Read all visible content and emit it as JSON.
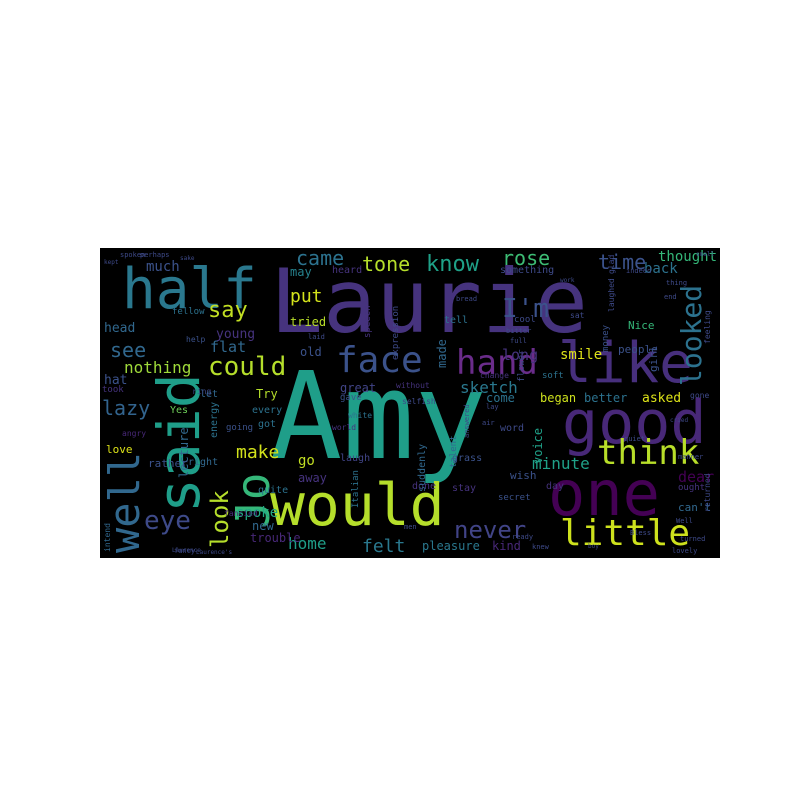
{
  "palette": {
    "background": "#000000",
    "page": "#ffffff",
    "colormap": "viridis"
  },
  "words": [
    {
      "text": "Amy",
      "color": "#1f9e89",
      "orientation": "horizontal"
    },
    {
      "text": "Laurie",
      "color": "#46337e",
      "orientation": "horizontal"
    },
    {
      "text": "said",
      "color": "#1f9e89",
      "orientation": "vertical"
    },
    {
      "text": "one",
      "color": "#440154",
      "orientation": "horizontal"
    },
    {
      "text": "good",
      "color": "#482878",
      "orientation": "horizontal"
    },
    {
      "text": "would",
      "color": "#b5de2b",
      "orientation": "horizontal"
    },
    {
      "text": "like",
      "color": "#472f7d",
      "orientation": "horizontal"
    },
    {
      "text": "half",
      "color": "#2a788e",
      "orientation": "horizontal"
    },
    {
      "text": "face",
      "color": "#3b528b",
      "orientation": "horizontal"
    },
    {
      "text": "hand",
      "color": "#6a2c8a",
      "orientation": "horizontal"
    },
    {
      "text": "little",
      "color": "#cde11d",
      "orientation": "horizontal"
    },
    {
      "text": "well",
      "color": "#31688e",
      "orientation": "vertical"
    },
    {
      "text": "think",
      "color": "#b8de29",
      "orientation": "horizontal"
    },
    {
      "text": "looked",
      "color": "#2c728e",
      "orientation": "vertical"
    },
    {
      "text": "Jo",
      "color": "#35b779",
      "orientation": "vertical"
    },
    {
      "text": "could",
      "color": "#b5de2b",
      "orientation": "horizontal"
    },
    {
      "text": "never",
      "color": "#414487",
      "orientation": "horizontal"
    },
    {
      "text": "eye",
      "color": "#3e4a89",
      "orientation": "horizontal"
    },
    {
      "text": "look",
      "color": "#b5de2b",
      "orientation": "vertical"
    },
    {
      "text": "I'm",
      "color": "#3b528b",
      "orientation": "horizontal"
    },
    {
      "text": "know",
      "color": "#1fa188",
      "orientation": "horizontal"
    },
    {
      "text": "tone",
      "color": "#b5de2b",
      "orientation": "horizontal"
    },
    {
      "text": "came",
      "color": "#2c728e",
      "orientation": "horizontal"
    },
    {
      "text": "rose",
      "color": "#3dbc74",
      "orientation": "horizontal"
    },
    {
      "text": "time",
      "color": "#3b528b",
      "orientation": "horizontal"
    },
    {
      "text": "say",
      "color": "#c2df23",
      "orientation": "horizontal"
    },
    {
      "text": "put",
      "color": "#d2e21b",
      "orientation": "horizontal"
    },
    {
      "text": "see",
      "color": "#31688e",
      "orientation": "horizontal"
    },
    {
      "text": "make",
      "color": "#d2e21b",
      "orientation": "horizontal"
    },
    {
      "text": "felt",
      "color": "#2a788e",
      "orientation": "horizontal"
    },
    {
      "text": "home",
      "color": "#1f9e89",
      "orientation": "horizontal"
    },
    {
      "text": "lazy",
      "color": "#32648e",
      "orientation": "horizontal"
    },
    {
      "text": "nothing",
      "color": "#9fda3a",
      "orientation": "horizontal"
    },
    {
      "text": "sketch",
      "color": "#2a788e",
      "orientation": "horizontal"
    },
    {
      "text": "minute",
      "color": "#1fa188",
      "orientation": "horizontal"
    },
    {
      "text": "dear",
      "color": "#440154",
      "orientation": "horizontal"
    },
    {
      "text": "long",
      "color": "#46337e",
      "orientation": "horizontal"
    },
    {
      "text": "smile",
      "color": "#dde318",
      "orientation": "horizontal"
    },
    {
      "text": "much",
      "color": "#3b528b",
      "orientation": "horizontal"
    },
    {
      "text": "thought",
      "color": "#35b779",
      "orientation": "horizontal"
    },
    {
      "text": "back",
      "color": "#2c728e",
      "orientation": "horizontal"
    },
    {
      "text": "flat",
      "color": "#31688e",
      "orientation": "horizontal"
    },
    {
      "text": "young",
      "color": "#46337e",
      "orientation": "horizontal"
    },
    {
      "text": "tried",
      "color": "#b8de29",
      "orientation": "horizontal"
    },
    {
      "text": "may",
      "color": "#26828e",
      "orientation": "horizontal"
    },
    {
      "text": "old",
      "color": "#3b528b",
      "orientation": "horizontal"
    },
    {
      "text": "lecture",
      "color": "#31688e",
      "orientation": "vertical"
    },
    {
      "text": "hat",
      "color": "#3b528b",
      "orientation": "horizontal"
    },
    {
      "text": "head",
      "color": "#31688e",
      "orientation": "horizontal"
    },
    {
      "text": "spoke",
      "color": "#22a884",
      "orientation": "horizontal"
    },
    {
      "text": "go",
      "color": "#c2df23",
      "orientation": "horizontal"
    },
    {
      "text": "away",
      "color": "#46337e",
      "orientation": "horizontal"
    },
    {
      "text": "new",
      "color": "#31688e",
      "orientation": "horizontal"
    },
    {
      "text": "trouble",
      "color": "#482878",
      "orientation": "horizontal"
    },
    {
      "text": "Try",
      "color": "#b5de2b",
      "orientation": "horizontal"
    },
    {
      "text": "asked",
      "color": "#dde318",
      "orientation": "horizontal"
    },
    {
      "text": "began",
      "color": "#cde11d",
      "orientation": "horizontal"
    },
    {
      "text": "better",
      "color": "#2c728e",
      "orientation": "horizontal"
    },
    {
      "text": "pleasure",
      "color": "#2a788e",
      "orientation": "horizontal"
    },
    {
      "text": "kind",
      "color": "#482878",
      "orientation": "horizontal"
    },
    {
      "text": "wish",
      "color": "#3b528b",
      "orientation": "horizontal"
    },
    {
      "text": "can't",
      "color": "#31688e",
      "orientation": "horizontal"
    },
    {
      "text": "day",
      "color": "#46337e",
      "orientation": "horizontal"
    },
    {
      "text": "come",
      "color": "#2c728e",
      "orientation": "horizontal"
    },
    {
      "text": "great",
      "color": "#414487",
      "orientation": "horizontal"
    },
    {
      "text": "laugh",
      "color": "#414487",
      "orientation": "horizontal"
    },
    {
      "text": "quite",
      "color": "#2c728e",
      "orientation": "horizontal"
    },
    {
      "text": "made",
      "color": "#31688e",
      "orientation": "vertical"
    },
    {
      "text": "voice",
      "color": "#1fa188",
      "orientation": "vertical"
    },
    {
      "text": "people",
      "color": "#3b528b",
      "orientation": "horizontal"
    },
    {
      "text": "Nice",
      "color": "#35b779",
      "orientation": "horizontal"
    },
    {
      "text": "love",
      "color": "#dde318",
      "orientation": "horizontal"
    },
    {
      "text": "rather",
      "color": "#3b528b",
      "orientation": "horizontal"
    },
    {
      "text": "right",
      "color": "#31688e",
      "orientation": "horizontal"
    },
    {
      "text": "done",
      "color": "#46337e",
      "orientation": "horizontal"
    },
    {
      "text": "grass",
      "color": "#3b528b",
      "orientation": "horizontal"
    },
    {
      "text": "stay",
      "color": "#46337e",
      "orientation": "horizontal"
    },
    {
      "text": "word",
      "color": "#3e4a89",
      "orientation": "horizontal"
    },
    {
      "text": "every",
      "color": "#2c728e",
      "orientation": "horizontal"
    },
    {
      "text": "got",
      "color": "#2c728e",
      "orientation": "horizontal"
    },
    {
      "text": "Yes",
      "color": "#6ece58",
      "orientation": "horizontal"
    },
    {
      "text": "took",
      "color": "#46337e",
      "orientation": "horizontal"
    },
    {
      "text": "tell",
      "color": "#2c728e",
      "orientation": "horizontal"
    },
    {
      "text": "girl",
      "color": "#3b528b",
      "orientation": "vertical"
    },
    {
      "text": "ought",
      "color": "#46337e",
      "orientation": "horizontal"
    },
    {
      "text": "cool",
      "color": "#3e4a89",
      "orientation": "horizontal"
    },
    {
      "text": "soft",
      "color": "#2c728e",
      "orientation": "horizontal"
    },
    {
      "text": "let",
      "color": "#31688e",
      "orientation": "horizontal"
    },
    {
      "text": "heard",
      "color": "#46337e",
      "orientation": "horizontal"
    },
    {
      "text": "something",
      "color": "#3e4a89",
      "orientation": "horizontal"
    },
    {
      "text": "Italian",
      "color": "#2c728e",
      "orientation": "vertical"
    },
    {
      "text": "talent",
      "color": "#31688e",
      "orientation": "vertical"
    },
    {
      "text": "suddenly",
      "color": "#31688e",
      "orientation": "vertical"
    },
    {
      "text": "secret",
      "color": "#3b528b",
      "orientation": "horizontal"
    },
    {
      "text": "gave",
      "color": "#3b528b",
      "orientation": "horizontal"
    },
    {
      "text": "world",
      "color": "#46337e",
      "orientation": "horizontal"
    },
    {
      "text": "energy",
      "color": "#2c728e",
      "orientation": "vertical"
    },
    {
      "text": "going",
      "color": "#3b528b",
      "orientation": "horizontal"
    },
    {
      "text": "fancied",
      "color": "#482878",
      "orientation": "horizontal"
    },
    {
      "text": "intend",
      "color": "#31688e",
      "orientation": "vertical"
    },
    {
      "text": "help",
      "color": "#3b528b",
      "orientation": "horizontal"
    },
    {
      "text": "fellow",
      "color": "#2c728e",
      "orientation": "horizontal"
    },
    {
      "text": "speech",
      "color": "#46337e",
      "orientation": "vertical"
    },
    {
      "text": "expression",
      "color": "#3e4a89",
      "orientation": "vertical"
    },
    {
      "text": "flower",
      "color": "#3e4a89",
      "orientation": "vertical"
    },
    {
      "text": "change",
      "color": "#46337e",
      "orientation": "horizontal"
    },
    {
      "text": "money",
      "color": "#3b528b",
      "orientation": "vertical"
    },
    {
      "text": "selfish",
      "color": "#3e4a89",
      "orientation": "horizontal"
    },
    {
      "text": "white",
      "color": "#2c728e",
      "orientation": "horizontal"
    },
    {
      "text": "without",
      "color": "#46337e",
      "orientation": "horizontal"
    },
    {
      "text": "angry",
      "color": "#482878",
      "orientation": "horizontal"
    },
    {
      "text": "ring",
      "color": "#3e4a89",
      "orientation": "horizontal"
    },
    {
      "text": "perhaps",
      "color": "#3e4a89",
      "orientation": "horizontal"
    },
    {
      "text": "spoken",
      "color": "#3e4a89",
      "orientation": "horizontal"
    },
    {
      "text": "fancy",
      "color": "#3e4a89",
      "orientation": "horizontal"
    },
    {
      "text": "knew",
      "color": "#3e4a89",
      "orientation": "horizontal"
    },
    {
      "text": "feeling",
      "color": "#3e4a89",
      "orientation": "vertical"
    },
    {
      "text": "returned",
      "color": "#3e4a89",
      "orientation": "vertical"
    },
    {
      "text": "laughed",
      "color": "#3e4a89",
      "orientation": "vertical"
    },
    {
      "text": "glad",
      "color": "#3e4a89",
      "orientation": "vertical"
    },
    {
      "text": "quiet",
      "color": "#3e4a89",
      "orientation": "horizontal"
    },
    {
      "text": "gone",
      "color": "#3e4a89",
      "orientation": "horizontal"
    },
    {
      "text": "sat",
      "color": "#3e4a89",
      "orientation": "horizontal"
    },
    {
      "text": "Bless",
      "color": "#3e4a89",
      "orientation": "horizontal"
    },
    {
      "text": "bitter",
      "color": "#3e4a89",
      "orientation": "horizontal"
    },
    {
      "text": "full",
      "color": "#3e4a89",
      "orientation": "horizontal"
    },
    {
      "text": "bread",
      "color": "#3e4a89",
      "orientation": "horizontal"
    },
    {
      "text": "laid",
      "color": "#3e4a89",
      "orientation": "horizontal"
    },
    {
      "text": "lay",
      "color": "#3e4a89",
      "orientation": "horizontal"
    },
    {
      "text": "air",
      "color": "#3e4a89",
      "orientation": "horizontal"
    },
    {
      "text": "men",
      "color": "#3e4a89",
      "orientation": "horizontal"
    },
    {
      "text": "Well",
      "color": "#3e4a89",
      "orientation": "horizontal"
    },
    {
      "text": "lovely",
      "color": "#3e4a89",
      "orientation": "horizontal"
    },
    {
      "text": "manner",
      "color": "#3e4a89",
      "orientation": "horizontal"
    },
    {
      "text": "turned",
      "color": "#3e4a89",
      "orientation": "horizontal"
    },
    {
      "text": "indeed",
      "color": "#3e4a89",
      "orientation": "horizontal"
    },
    {
      "text": "thing",
      "color": "#3e4a89",
      "orientation": "horizontal"
    },
    {
      "text": "answered",
      "color": "#3e4a89",
      "orientation": "vertical"
    },
    {
      "text": "end",
      "color": "#3e4a89",
      "orientation": "horizontal"
    },
    {
      "text": "Laurence",
      "color": "#3e4a89",
      "orientation": "horizontal"
    },
    {
      "text": "ready",
      "color": "#3e4a89",
      "orientation": "horizontal"
    },
    {
      "text": "sake",
      "color": "#3e4a89",
      "orientation": "horizontal"
    },
    {
      "text": "kept",
      "color": "#3e4a89",
      "orientation": "horizontal"
    },
    {
      "text": "cried",
      "color": "#3e4a89",
      "orientation": "horizontal"
    },
    {
      "text": "small",
      "color": "#3e4a89",
      "orientation": "horizontal"
    },
    {
      "text": "work",
      "color": "#3e4a89",
      "orientation": "horizontal"
    },
    {
      "text": "boy",
      "color": "#3e4a89",
      "orientation": "horizontal"
    },
    {
      "text": "Laurence's",
      "color": "#3e4a89",
      "orientation": "horizontal"
    },
    {
      "text": "hammock",
      "color": "#3e4a89",
      "orientation": "horizontal"
    }
  ]
}
